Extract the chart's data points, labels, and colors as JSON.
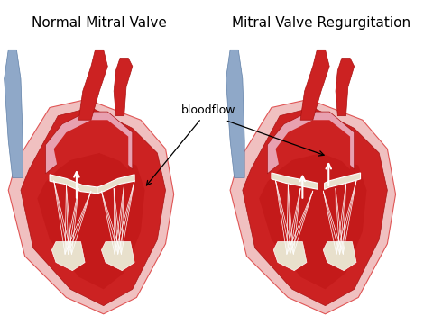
{
  "title_left": "Normal Mitral Valve",
  "title_right": "Mitral Valve Regurgitation",
  "bloodflow_label": "bloodflow",
  "bg_color": "#ffffff",
  "title_fontsize": 11,
  "annotation_fontsize": 9,
  "fig_width": 4.81,
  "fig_height": 3.71,
  "dpi": 100,
  "colors": {
    "heart_red": "#cc2222",
    "heart_dark_red": "#aa1111",
    "heart_light_red": "#e05555",
    "light_pink": "#f0c0c0",
    "chamber_red": "#c41a1a",
    "valve_cream": "#e8e0cc",
    "aorta_red": "#cc2222",
    "vein_blue": "#8fa8c8",
    "vein_blue_dark": "#6080a8",
    "pink_atrium": "#e8a0b0"
  }
}
